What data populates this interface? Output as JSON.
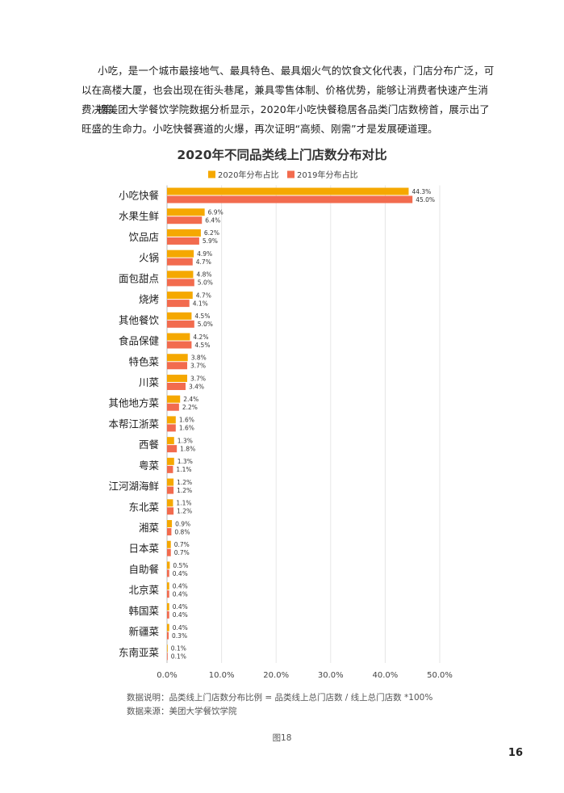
{
  "paragraphs": [
    "小吃，是一个城市最接地气、最具特色、最具烟火气的饮食文化代表，门店分布广泛，可以在高楼大厦，也会出现在街头巷尾，兼具零售体制、价格优势，能够让消费者快速产生消费决策。",
    "据美团大学餐饮学院数据分析显示，2020年小吃快餐稳居各品类门店数榜首，展示出了旺盛的生命力。小吃快餐赛道的火爆，再次证明“高频、刚需”才是发展硬道理。"
  ],
  "notes": {
    "definition": "数据说明：品类线上门店数分布比例 = 品类线上总门店数 / 线上总门店数 *100%",
    "source": "数据来源：美团大学餐饮学院"
  },
  "figure_label": "图18",
  "page_number": "16",
  "chart_data": {
    "type": "bar",
    "orientation": "horizontal",
    "title": "2020年不同品类线上门店数分布对比",
    "categories": [
      "小吃快餐",
      "水果生鲜",
      "饮品店",
      "火锅",
      "面包甜点",
      "烧烤",
      "其他餐饮",
      "食品保健",
      "特色菜",
      "川菜",
      "其他地方菜",
      "本帮江浙菜",
      "西餐",
      "粤菜",
      "江河湖海鲜",
      "东北菜",
      "湘菜",
      "日本菜",
      "自助餐",
      "北京菜",
      "韩国菜",
      "新疆菜",
      "东南亚菜"
    ],
    "series": [
      {
        "name": "2020年分布占比",
        "color": "#F5A800",
        "values": [
          44.3,
          6.9,
          6.2,
          4.9,
          4.8,
          4.7,
          4.5,
          4.2,
          3.8,
          3.7,
          2.4,
          1.6,
          1.3,
          1.3,
          1.2,
          1.1,
          0.9,
          0.7,
          0.5,
          0.4,
          0.4,
          0.4,
          0.1
        ]
      },
      {
        "name": "2019年分布占比",
        "color": "#F26B4E",
        "values": [
          45.0,
          6.4,
          5.9,
          4.7,
          5.0,
          4.1,
          5.0,
          4.5,
          3.7,
          3.4,
          2.2,
          1.6,
          1.8,
          1.1,
          1.2,
          1.2,
          0.8,
          0.7,
          0.4,
          0.4,
          0.4,
          0.3,
          0.1
        ]
      }
    ],
    "xlim": [
      0,
      50
    ],
    "xticks": [
      "0.0%",
      "10.0%",
      "20.0%",
      "30.0%",
      "40.0%",
      "50.0%"
    ],
    "value_suffix": "%",
    "grid": true,
    "legend": "top-center"
  }
}
